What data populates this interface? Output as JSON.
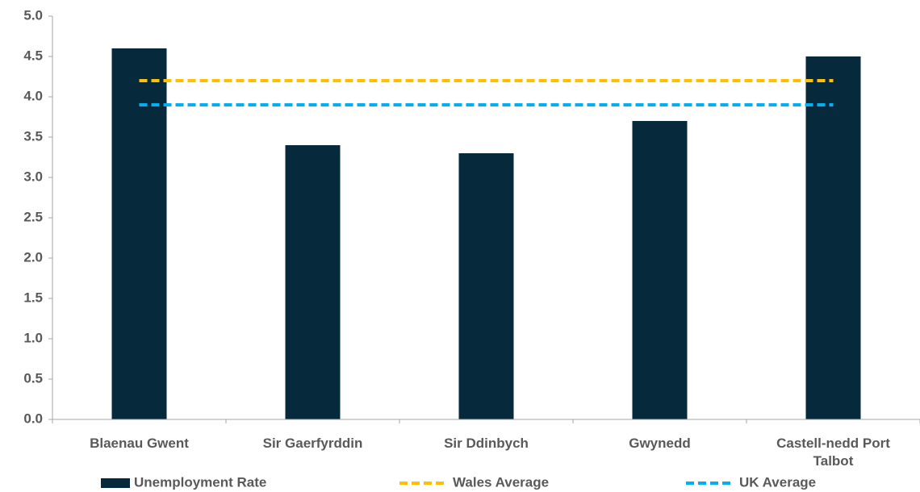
{
  "chart_data": {
    "type": "bar",
    "categories": [
      "Blaenau Gwent",
      "Sir Gaerfyrddin",
      "Sir Ddinbych",
      "Gwynedd",
      "Castell-nedd Port Talbot"
    ],
    "series": [
      {
        "name": "Unemployment Rate",
        "type": "bar",
        "color": "#062a3c",
        "values": [
          4.6,
          3.4,
          3.3,
          3.7,
          4.5
        ]
      },
      {
        "name": "Wales Average",
        "type": "line",
        "dashed": true,
        "color": "#ffc000",
        "values": [
          4.2,
          4.2,
          4.2,
          4.2,
          4.2
        ]
      },
      {
        "name": "UK Average",
        "type": "line",
        "dashed": true,
        "color": "#00b0f0",
        "values": [
          3.9,
          3.9,
          3.9,
          3.9,
          3.9
        ]
      }
    ],
    "ylim": [
      0,
      5
    ],
    "yticks": [
      {
        "value": 0,
        "label": "0.0"
      },
      {
        "value": 0.5,
        "label": "0.5"
      },
      {
        "value": 1,
        "label": "1.0"
      },
      {
        "value": 1.5,
        "label": "1.5"
      },
      {
        "value": 2,
        "label": "2.0"
      },
      {
        "value": 2.5,
        "label": "2.5"
      },
      {
        "value": 3,
        "label": "3.0"
      },
      {
        "value": 3.5,
        "label": "3.5"
      },
      {
        "value": 4,
        "label": "4.0"
      },
      {
        "value": 4.5,
        "label": "4.5"
      },
      {
        "value": 5,
        "label": "5.0"
      }
    ],
    "grid": false,
    "legend": "bottom"
  }
}
